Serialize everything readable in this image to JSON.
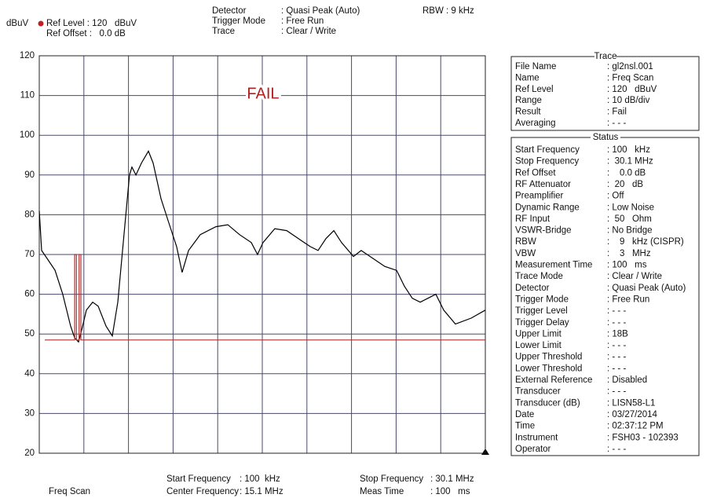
{
  "header": {
    "y_unit": "dBuV",
    "ref_level": "Ref Level : 120   dBuV",
    "ref_offset": "Ref Offset :   0.0 dB",
    "settings": [
      [
        "Detector",
        ": Quasi Peak (Auto)"
      ],
      [
        "Trigger Mode",
        ": Free Run"
      ],
      [
        "Trace",
        ": Clear / Write"
      ]
    ],
    "rbw": "RBW : 9 kHz"
  },
  "chart_data": {
    "type": "line",
    "annotation": "FAIL",
    "ylim": [
      20,
      120
    ],
    "yticks": [
      20,
      30,
      40,
      50,
      60,
      70,
      80,
      90,
      100,
      110,
      120
    ],
    "xlim": [
      0.1,
      30.1
    ],
    "grid": true,
    "series": [
      {
        "color": "#000000",
        "x": [
          0.1,
          0.26,
          0.63,
          1.16,
          1.68,
          2.21,
          2.48,
          2.74,
          2.95,
          3.27,
          3.69,
          4.06,
          4.59,
          5.01,
          5.38,
          5.8,
          6.17,
          6.33,
          6.6,
          6.97,
          7.44,
          7.76,
          8.29,
          8.81,
          9.34,
          9.71,
          10.14,
          10.93,
          11.98,
          12.78,
          13.57,
          14.36,
          14.78,
          15.15,
          15.94,
          16.74,
          17.53,
          18.32,
          18.85,
          19.38,
          19.91,
          20.43,
          21.23,
          21.75,
          22.55,
          23.34,
          24.13,
          24.66,
          25.19,
          25.72,
          26.24,
          26.77,
          27.3,
          28.09,
          29.15,
          30.1
        ],
        "values": [
          81,
          71,
          69,
          66,
          60,
          52,
          49,
          48,
          51,
          56,
          58,
          57,
          52,
          49.5,
          58,
          75,
          90,
          92,
          90,
          93,
          96,
          93,
          84,
          78,
          72,
          65.5,
          71,
          75,
          77,
          77.5,
          75,
          73,
          70,
          73,
          76.5,
          76,
          74,
          72,
          71,
          74,
          76,
          73,
          69.5,
          71,
          69,
          67,
          66,
          62,
          59,
          58,
          59,
          60,
          56,
          52.5,
          54,
          56
        ]
      },
      {
        "color": "#b03030",
        "x": [
          0.47,
          2.48,
          2.48,
          2.6,
          2.6,
          2.78,
          2.78,
          2.9,
          2.9,
          30.1
        ],
        "values": [
          48.5,
          48.5,
          70,
          70,
          48.5,
          48.5,
          70,
          70,
          48.5,
          48.5
        ]
      }
    ]
  },
  "footer": {
    "mode": "Freq Scan",
    "left": [
      [
        "Start Frequency",
        ": 100  kHz"
      ],
      [
        "Center Frequency",
        ": 15.1 MHz"
      ]
    ],
    "right": [
      [
        "Stop Frequency",
        ": 30.1 MHz"
      ],
      [
        "Meas Time",
        ": 100   ms"
      ]
    ]
  },
  "trace_panel": {
    "title": "Trace",
    "rows": [
      [
        "File Name",
        ": gl2nsl.001"
      ],
      [
        "Name",
        ": Freq Scan"
      ],
      [
        "Ref Level",
        ": 120   dBuV"
      ],
      [
        "Range",
        ": 10 dB/div"
      ],
      [
        "Result",
        ": Fail"
      ],
      [
        "Averaging",
        ": - - -"
      ]
    ]
  },
  "status_panel": {
    "title": "Status",
    "rows": [
      [
        "Start Frequency",
        ": 100   kHz"
      ],
      [
        "Stop Frequency",
        ":  30.1 MHz"
      ],
      [
        "Ref Offset",
        ":    0.0 dB"
      ],
      [
        "RF Attenuator",
        ":  20   dB"
      ],
      [
        "Preamplifier",
        ": Off"
      ],
      [
        "Dynamic Range",
        ": Low Noise"
      ],
      [
        "RF Input",
        ":  50   Ohm"
      ],
      [
        "VSWR-Bridge",
        ": No Bridge"
      ],
      [
        "RBW",
        ":    9   kHz (CISPR)"
      ],
      [
        "VBW",
        ":    3   MHz"
      ],
      [
        "Measurement Time",
        ": 100   ms"
      ],
      [
        "Trace Mode",
        ": Clear / Write"
      ],
      [
        "Detector",
        ": Quasi Peak (Auto)"
      ],
      [
        "Trigger Mode",
        ": Free Run"
      ],
      [
        "Trigger Level",
        ": - - -"
      ],
      [
        "Trigger Delay",
        ": - - -"
      ],
      [
        "Upper Limit",
        ": 18B"
      ],
      [
        "Lower Limit",
        ": - - -"
      ],
      [
        "Upper Threshold",
        ": - - -"
      ],
      [
        "Lower Threshold",
        ": - - -"
      ],
      [
        "External Reference",
        ": Disabled"
      ],
      [
        "Transducer",
        ": - - -"
      ],
      [
        "Transducer (dB)",
        ": LISN58-L1"
      ],
      [
        "Date",
        ": 03/27/2014"
      ],
      [
        "Time",
        ": 02:37:12 PM"
      ],
      [
        "Instrument",
        ": FSH03 - 102393"
      ],
      [
        "Operator",
        ": - - -"
      ]
    ]
  }
}
